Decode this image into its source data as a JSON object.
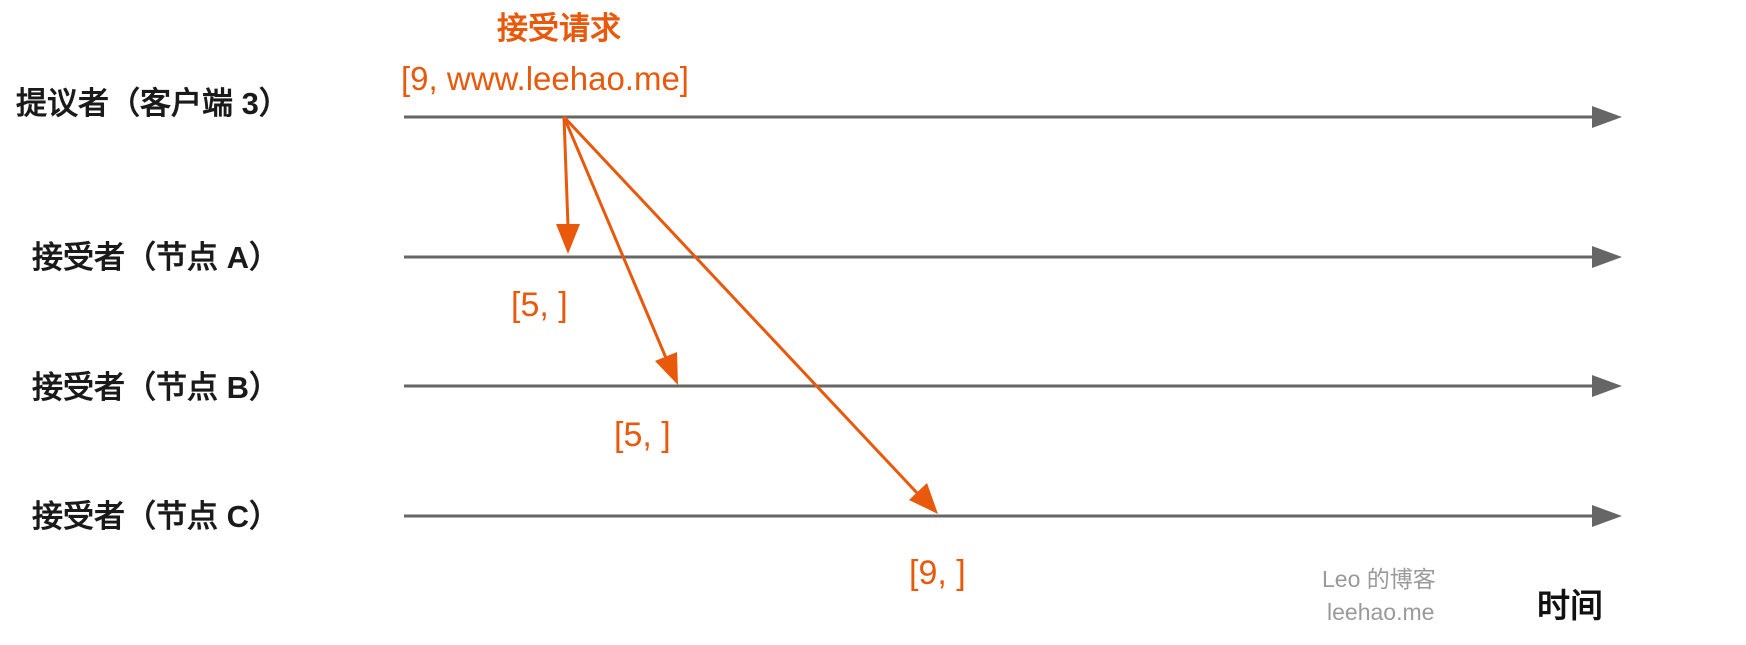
{
  "colors": {
    "timeline": "#666666",
    "message": "#e8590c",
    "label": "#1a1a1a",
    "watermark": "#9a9a9a"
  },
  "lanes": [
    {
      "label": "提议者（客户端 3）"
    },
    {
      "label": "接受者（节点 A）"
    },
    {
      "label": "接受者（节点 B）"
    },
    {
      "label": "接受者（节点 C）"
    }
  ],
  "request": {
    "title": "接受请求",
    "value": "[9, www.leehao.me]"
  },
  "responses": [
    {
      "target": "接受者（节点 A）",
      "text": "[5, ]"
    },
    {
      "target": "接受者（节点 B）",
      "text": "[5, ]"
    },
    {
      "target": "接受者（节点 C）",
      "text": "[9, ]"
    }
  ],
  "axis_title": "时间",
  "watermark": {
    "line1": "Leo 的博客",
    "line2": "leehao.me"
  }
}
